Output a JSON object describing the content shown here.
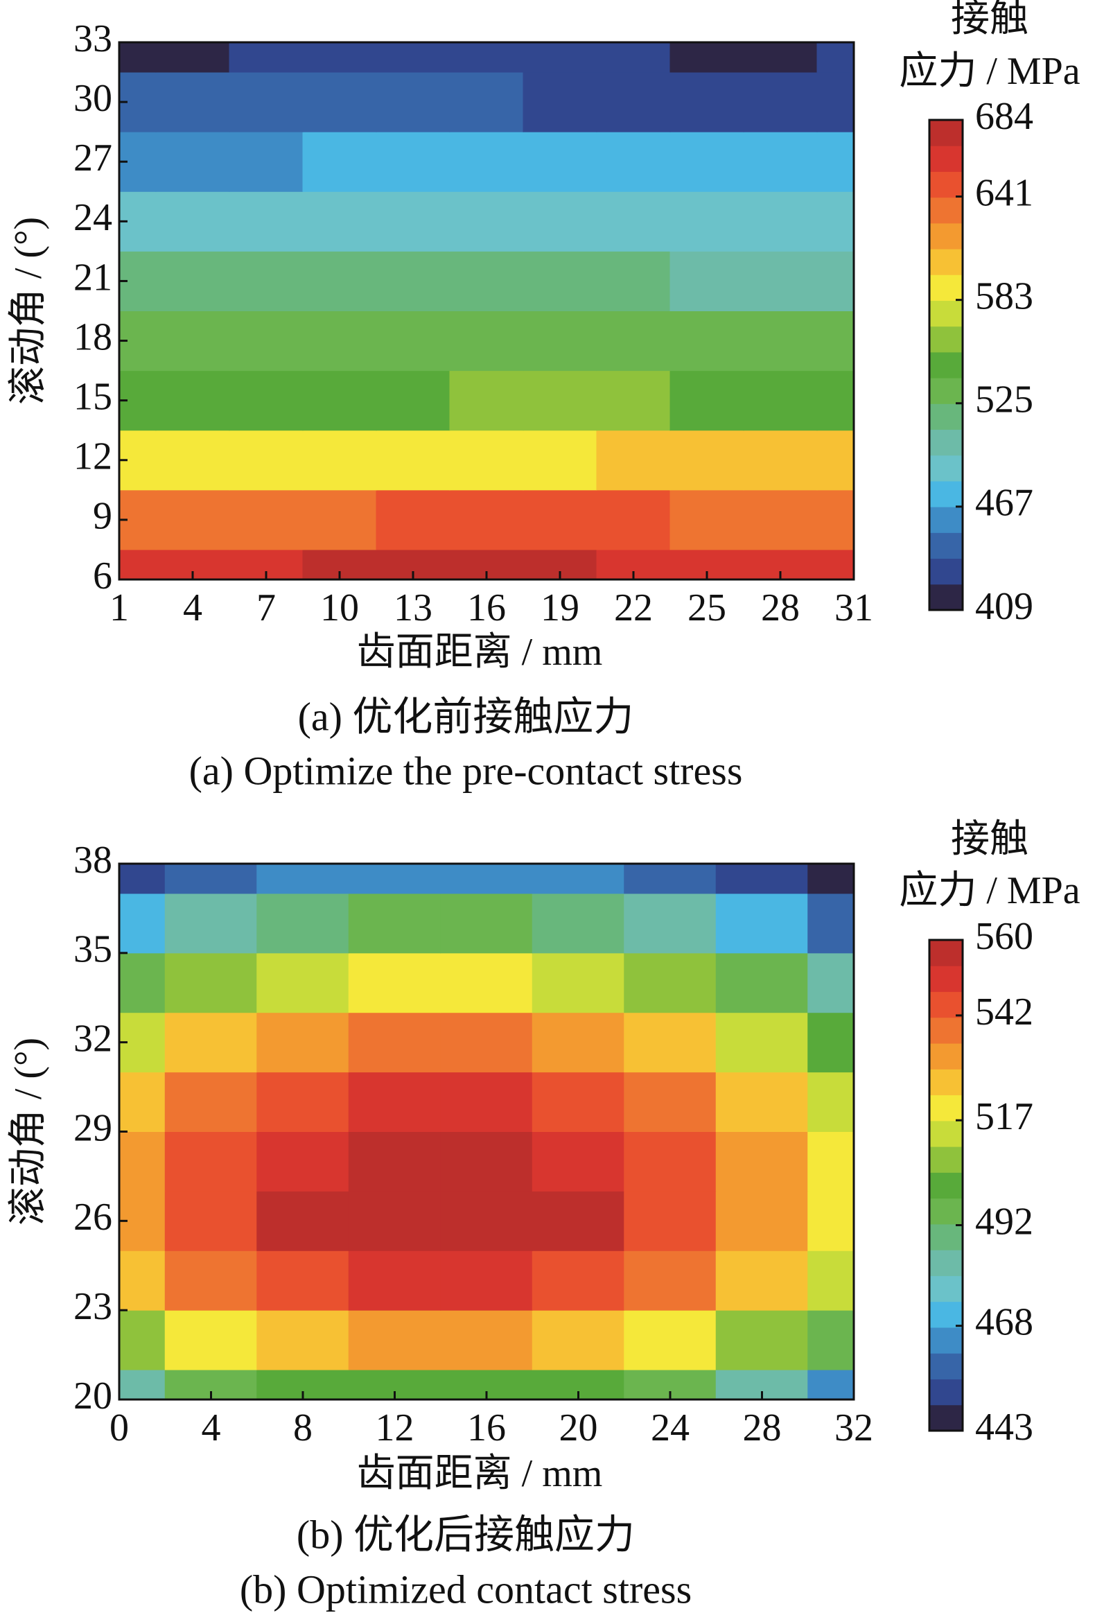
{
  "chart_data": [
    {
      "type": "contour",
      "colorbar_title": [
        "接触",
        "应力 / MPa"
      ],
      "clim": [
        409,
        684
      ],
      "cticks": [
        409,
        467,
        525,
        583,
        641,
        684
      ],
      "colors": [
        "#2d2646",
        "#31478f",
        "#3765a8",
        "#3e8cc6",
        "#4ab7e3",
        "#6bc2c9",
        "#6dbba8",
        "#68b77c",
        "#6bb54f",
        "#58aa3a",
        "#8fc23c",
        "#c8dc3a",
        "#f5e83a",
        "#f7c134",
        "#f39a30",
        "#ee7431",
        "#e9512f",
        "#d8362f",
        "#bd2f2c"
      ],
      "xlabel": "齿面距离 / mm",
      "ylabel": "滚动角 / (°)",
      "caption_zh": "(a)  优化前接触应力",
      "caption_en": "(a)  Optimize the pre-contact stress",
      "x": [
        1,
        4,
        7,
        10,
        13,
        16,
        19,
        22,
        25,
        28,
        31
      ],
      "y": [
        6,
        9,
        12,
        15,
        18,
        21,
        24,
        27,
        30,
        33
      ],
      "z": [
        [
          660,
          665,
          668,
          672,
          672,
          672,
          672,
          668,
          660,
          662,
          665
        ],
        [
          635,
          630,
          632,
          640,
          645,
          645,
          645,
          645,
          640,
          638,
          635
        ],
        [
          590,
          588,
          585,
          585,
          585,
          590,
          595,
          600,
          600,
          600,
          598
        ],
        [
          545,
          545,
          548,
          550,
          552,
          555,
          555,
          555,
          552,
          550,
          550
        ],
        [
          535,
          535,
          535,
          535,
          535,
          535,
          535,
          535,
          535,
          532,
          532
        ],
        [
          512,
          512,
          515,
          515,
          515,
          515,
          515,
          512,
          510,
          508,
          510
        ],
        [
          495,
          495,
          485,
          485,
          485,
          485,
          485,
          485,
          485,
          490,
          495
        ],
        [
          462,
          462,
          465,
          468,
          470,
          475,
          475,
          475,
          475,
          470,
          470
        ],
        [
          440,
          440,
          440,
          440,
          440,
          440,
          430,
          430,
          432,
          432,
          432
        ],
        [
          415,
          418,
          425,
          428,
          428,
          428,
          428,
          428,
          420,
          418,
          425
        ]
      ],
      "xlim": [
        1,
        31
      ],
      "xticks": [
        1,
        4,
        7,
        10,
        13,
        16,
        19,
        22,
        25,
        28,
        31
      ],
      "ylim": [
        6,
        33
      ],
      "yticks": [
        6,
        9,
        12,
        15,
        18,
        21,
        24,
        27,
        30,
        33
      ]
    },
    {
      "type": "contour",
      "colorbar_title": [
        "接触",
        "应力 / MPa"
      ],
      "clim": [
        443,
        560
      ],
      "cticks": [
        443,
        468,
        492,
        517,
        542,
        560
      ],
      "colors": [
        "#2d2646",
        "#31478f",
        "#3765a8",
        "#3e8cc6",
        "#4ab7e3",
        "#6bc2c9",
        "#6dbba8",
        "#68b77c",
        "#6bb54f",
        "#58aa3a",
        "#8fc23c",
        "#c8dc3a",
        "#f5e83a",
        "#f7c134",
        "#f39a30",
        "#ee7431",
        "#e9512f",
        "#d8362f",
        "#bd2f2c"
      ],
      "xlabel": "齿面距离 / mm",
      "ylabel": "滚动角 / (°)",
      "caption_zh": "(b)  优化后接触应力",
      "caption_en": "(b)  Optimized contact stress",
      "x": [
        0,
        4,
        8,
        12,
        16,
        20,
        24,
        28,
        32
      ],
      "y": [
        20,
        22,
        24,
        26,
        28,
        30,
        32,
        34,
        36,
        38
      ],
      "z": [
        [
          482,
          493,
          501,
          504,
          504,
          501,
          493,
          482,
          467
        ],
        [
          510,
          521,
          528,
          532,
          532,
          528,
          521,
          510,
          495
        ],
        [
          527,
          538,
          546,
          550,
          550,
          546,
          538,
          527,
          512
        ],
        [
          535,
          546,
          554,
          557,
          557,
          554,
          546,
          535,
          520
        ],
        [
          533,
          545,
          552,
          556,
          556,
          552,
          545,
          533,
          518
        ],
        [
          527,
          538,
          545,
          549,
          549,
          545,
          538,
          527,
          512
        ],
        [
          514,
          525,
          533,
          537,
          537,
          533,
          525,
          514,
          499
        ],
        [
          496,
          508,
          515,
          519,
          519,
          515,
          508,
          496,
          481
        ],
        [
          473,
          484,
          492,
          495,
          495,
          492,
          484,
          473,
          458
        ],
        [
          452,
          458,
          463,
          466,
          466,
          463,
          458,
          452,
          447
        ]
      ],
      "xlim": [
        0,
        32
      ],
      "xticks": [
        0,
        4,
        8,
        12,
        16,
        20,
        24,
        28,
        32
      ],
      "ylim": [
        20,
        38
      ],
      "yticks": [
        20,
        23,
        26,
        29,
        32,
        35,
        38
      ]
    }
  ]
}
